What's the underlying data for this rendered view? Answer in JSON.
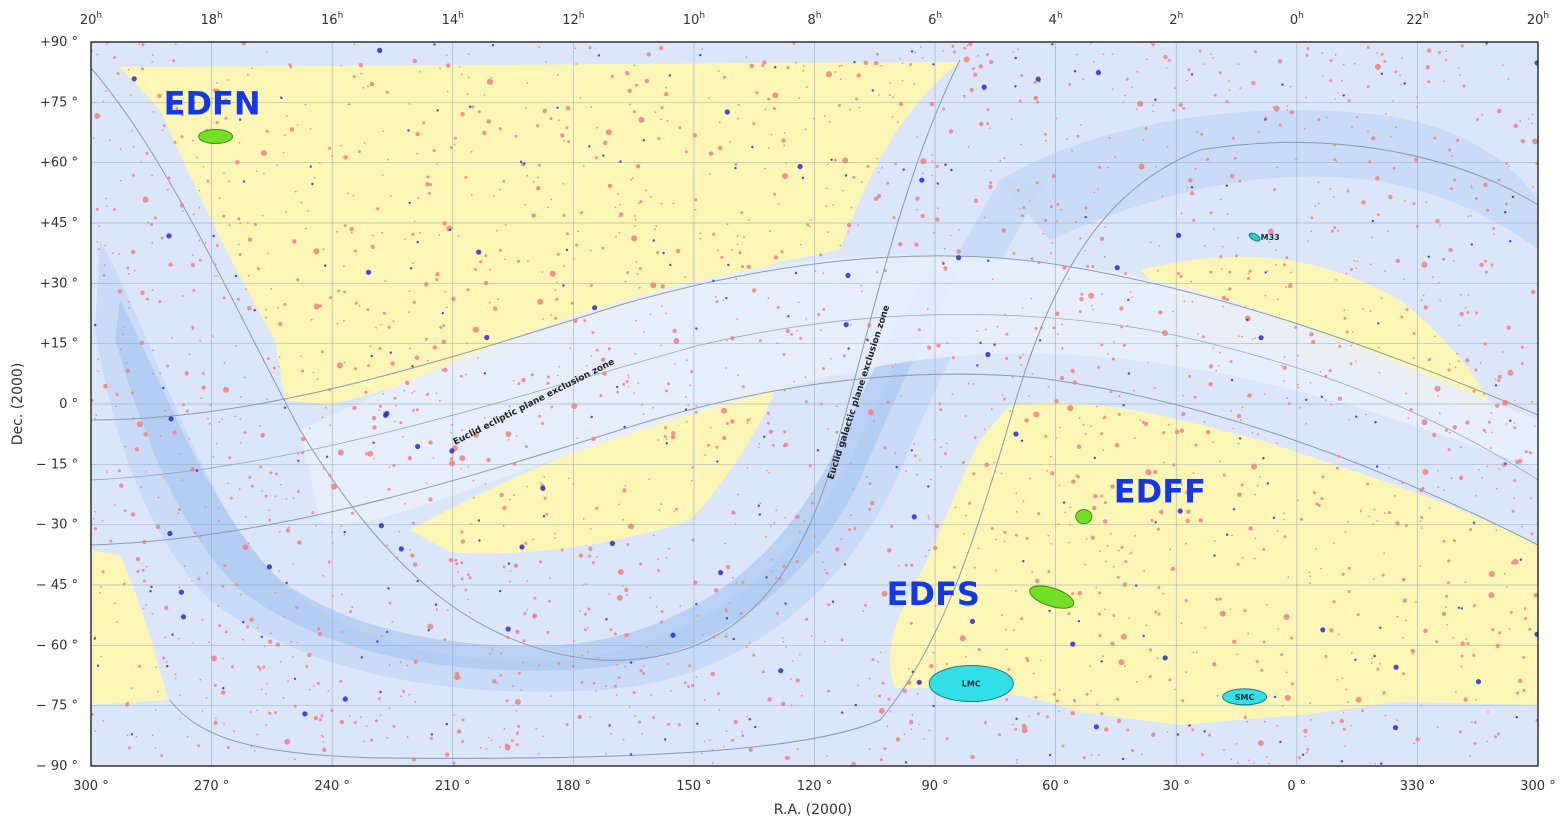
{
  "chart_data": {
    "type": "scatter",
    "projection": "equirectangular",
    "xlabel": "R.A. (2000)",
    "ylabel": "Dec. (2000)",
    "ra_deg_ticks": [
      "300 °",
      "270 °",
      "240 °",
      "210 °",
      "180 °",
      "150 °",
      "120 °",
      "90 °",
      "60 °",
      "30 °",
      "0 °",
      "330 °",
      "300 °"
    ],
    "ra_hour_ticks": [
      "20",
      "18",
      "16",
      "14",
      "12",
      "10",
      "8",
      "6",
      "4",
      "2",
      "0",
      "22",
      "20"
    ],
    "hour_suffix": "h",
    "dec_ticks": [
      "+90 °",
      "+75 °",
      "+60 °",
      "+45 °",
      "+30 °",
      "+15 °",
      "0 °",
      "− 15 °",
      "− 30 °",
      "− 45 °",
      "− 60 °",
      "− 75 °",
      "− 90 °"
    ],
    "dec_values": [
      90,
      75,
      60,
      45,
      30,
      15,
      0,
      -15,
      -30,
      -45,
      -60,
      -75,
      -90
    ],
    "ylim": [
      -90,
      90
    ],
    "grid": true,
    "fields": [
      {
        "name": "EDFN",
        "ra": 269,
        "dec": 66.5,
        "color": "#74e023"
      },
      {
        "name": "EDFF",
        "ra": 53,
        "dec": -28,
        "color": "#74e023"
      },
      {
        "name": "EDFS",
        "ra": 61,
        "dec": -48,
        "color": "#74e023"
      }
    ],
    "objects": [
      {
        "name": "LMC",
        "ra": 81,
        "dec": -69.5,
        "color": "#33e0e8"
      },
      {
        "name": "SMC",
        "ra": 13,
        "dec": -72.8,
        "color": "#33e0e8"
      },
      {
        "name": "M33",
        "ra": 10.5,
        "dec": 41.5,
        "color": "#33c8c8"
      }
    ],
    "zones": [
      {
        "label": "Euclid ecliptic plane exclusion zone"
      },
      {
        "label": "Euclid galactic plane exclusion zone"
      }
    ],
    "colors": {
      "survey_area": "#fbf6b5",
      "excluded_light": "#e4ecfb",
      "excluded_mid": "#c5d8f5",
      "excluded_dark": "#a9c6ef",
      "star_red": "#f08080",
      "star_blue": "#2a2ad0",
      "field_label": "#1238e8"
    }
  }
}
